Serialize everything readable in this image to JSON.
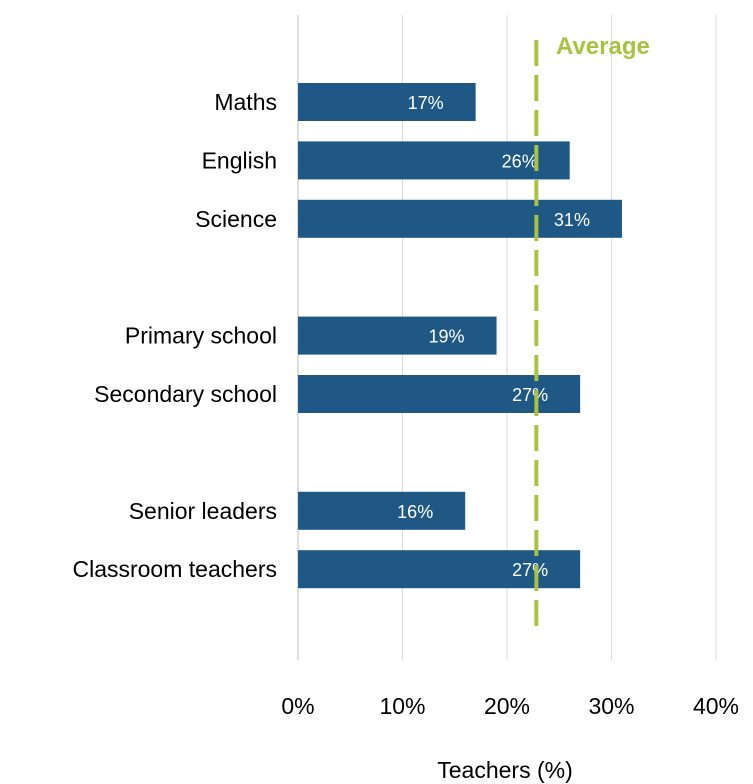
{
  "chart_data": {
    "type": "bar",
    "orientation": "horizontal",
    "categories": [
      "Maths",
      "English",
      "Science",
      "Primary school",
      "Secondary school",
      "Senior leaders",
      "Classroom teachers"
    ],
    "groups": [
      [
        "Maths",
        "English",
        "Science"
      ],
      [
        "Primary school",
        "Secondary school"
      ],
      [
        "Senior leaders",
        "Classroom teachers"
      ]
    ],
    "values": [
      17,
      26,
      31,
      19,
      27,
      16,
      27
    ],
    "data_labels": [
      "17%",
      "26%",
      "31%",
      "19%",
      "27%",
      "16%",
      "27%"
    ],
    "xlabel": "Teachers (%)",
    "xlim": [
      0,
      40
    ],
    "xticks": [
      0,
      10,
      20,
      30,
      40
    ],
    "xtick_labels": [
      "0%",
      "10%",
      "20%",
      "30%",
      "40%"
    ],
    "grid": "vertical",
    "reference_line": {
      "label": "Average",
      "value": 23,
      "style": "dashed"
    },
    "colors": {
      "bar": "#1f5785",
      "average": "#a9c23f",
      "grid": "#d9d9d9"
    }
  }
}
